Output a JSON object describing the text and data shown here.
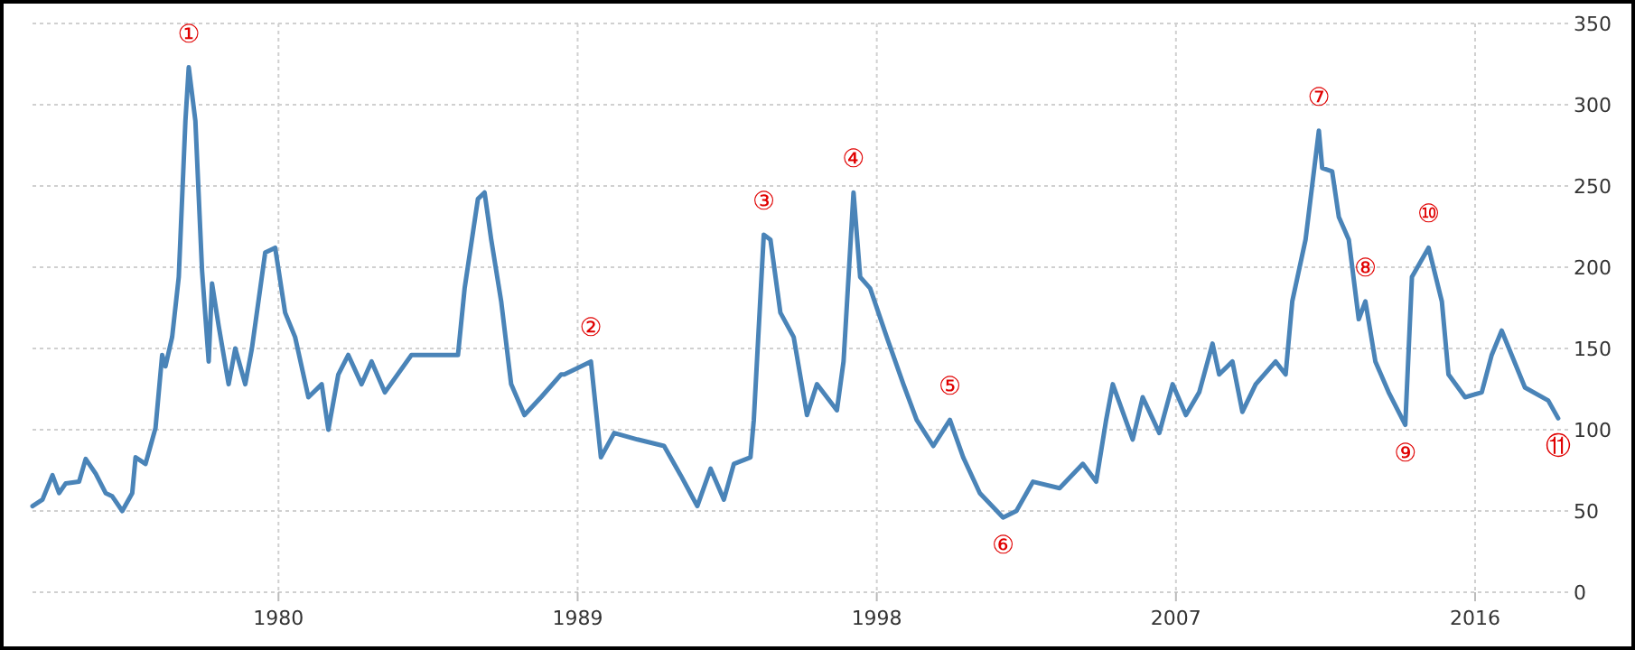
{
  "chart_data": {
    "type": "line",
    "x": [
      1972.6,
      1972.9,
      1973.2,
      1973.4,
      1973.6,
      1974.0,
      1974.2,
      1974.5,
      1974.8,
      1975.0,
      1975.3,
      1975.6,
      1975.7,
      1976.0,
      1976.3,
      1976.5,
      1976.6,
      1976.8,
      1977.0,
      1977.2,
      1977.3,
      1977.5,
      1977.7,
      1977.9,
      1978.0,
      1978.2,
      1978.5,
      1978.7,
      1979.0,
      1979.2,
      1979.6,
      1979.9,
      1980.2,
      1980.5,
      1980.9,
      1981.3,
      1981.5,
      1981.8,
      1982.1,
      1982.5,
      1982.8,
      1983.2,
      1984.0,
      1984.7,
      1985.4,
      1985.6,
      1986.0,
      1986.2,
      1986.4,
      1986.7,
      1987.0,
      1987.4,
      1987.9,
      1988.5,
      1988.6,
      1989.4,
      1989.7,
      1990.1,
      1990.8,
      1991.6,
      1992.1,
      1992.6,
      1993.0,
      1993.4,
      1993.7,
      1994.2,
      1994.3,
      1994.6,
      1994.8,
      1995.1,
      1995.5,
      1995.9,
      1996.2,
      1996.8,
      1997.0,
      1997.3,
      1997.5,
      1997.8,
      1998.3,
      1998.8,
      1999.2,
      1999.7,
      2000.2,
      2000.6,
      2001.1,
      2001.8,
      2002.2,
      2002.7,
      2003.5,
      2004.2,
      2004.6,
      2004.9,
      2005.1,
      2005.7,
      2006.0,
      2006.5,
      2006.9,
      2007.3,
      2007.7,
      2008.1,
      2008.3,
      2008.7,
      2009.0,
      2009.4,
      2010.0,
      2010.3,
      2010.5,
      2010.9,
      2011.3,
      2011.4,
      2011.7,
      2011.9,
      2012.2,
      2012.5,
      2012.7,
      2013.0,
      2013.4,
      2013.9,
      2014.1,
      2014.6,
      2015.0,
      2015.2,
      2015.7,
      2016.2,
      2016.5,
      2016.8,
      2017.1,
      2017.5,
      2018.2,
      2018.5
    ],
    "series": [
      {
        "color": "#4a84b8",
        "values": [
          53,
          57,
          72,
          61,
          67,
          68,
          82,
          73,
          61,
          59,
          50,
          61,
          83,
          79,
          101,
          146,
          139,
          157,
          194,
          290,
          323,
          290,
          198,
          142,
          190,
          164,
          128,
          150,
          128,
          150,
          209,
          212,
          172,
          157,
          120,
          128,
          100,
          134,
          146,
          128,
          142,
          123,
          146,
          146,
          146,
          187,
          242,
          246,
          217,
          179,
          128,
          109,
          120,
          134,
          134,
          142,
          83,
          98,
          94,
          90,
          72,
          53,
          76,
          57,
          79,
          83,
          106,
          220,
          217,
          172,
          157,
          109,
          128,
          112,
          142,
          246,
          194,
          187,
          157,
          128,
          106,
          90,
          106,
          83,
          61,
          46,
          50,
          68,
          64,
          79,
          68,
          106,
          128,
          94,
          120,
          98,
          128,
          109,
          123,
          153,
          134,
          142,
          111,
          128,
          142,
          134,
          179,
          217,
          284,
          261,
          259,
          231,
          217,
          168,
          179,
          142,
          123,
          103,
          194,
          212,
          179,
          134,
          120,
          123,
          146,
          161,
          146,
          126,
          118,
          107
        ]
      }
    ],
    "xlim": [
      1972.6,
      2018.8
    ],
    "xticks": [
      1980,
      1989,
      1998,
      2007,
      2016
    ],
    "ylim": [
      0,
      350
    ],
    "yticks": [
      0,
      50,
      100,
      150,
      200,
      250,
      300,
      350
    ],
    "grid": true,
    "line_style": "solid",
    "marker": "none",
    "annotations": [
      {
        "text": "①",
        "x": 1977.3,
        "y": 323
      },
      {
        "text": "②",
        "x": 1989.4,
        "y": 142
      },
      {
        "text": "③",
        "x": 1994.6,
        "y": 220
      },
      {
        "text": "④",
        "x": 1997.3,
        "y": 246
      },
      {
        "text": "⑤",
        "x": 2000.2,
        "y": 106
      },
      {
        "text": "⑥",
        "x": 2001.8,
        "y": 46
      },
      {
        "text": "⑦",
        "x": 2011.3,
        "y": 284
      },
      {
        "text": "⑧",
        "x": 2012.7,
        "y": 179
      },
      {
        "text": "⑨",
        "x": 2013.9,
        "y": 103
      },
      {
        "text": "⑩",
        "x": 2014.6,
        "y": 212
      },
      {
        "text": "⑪",
        "x": 2018.5,
        "y": 107
      }
    ]
  }
}
